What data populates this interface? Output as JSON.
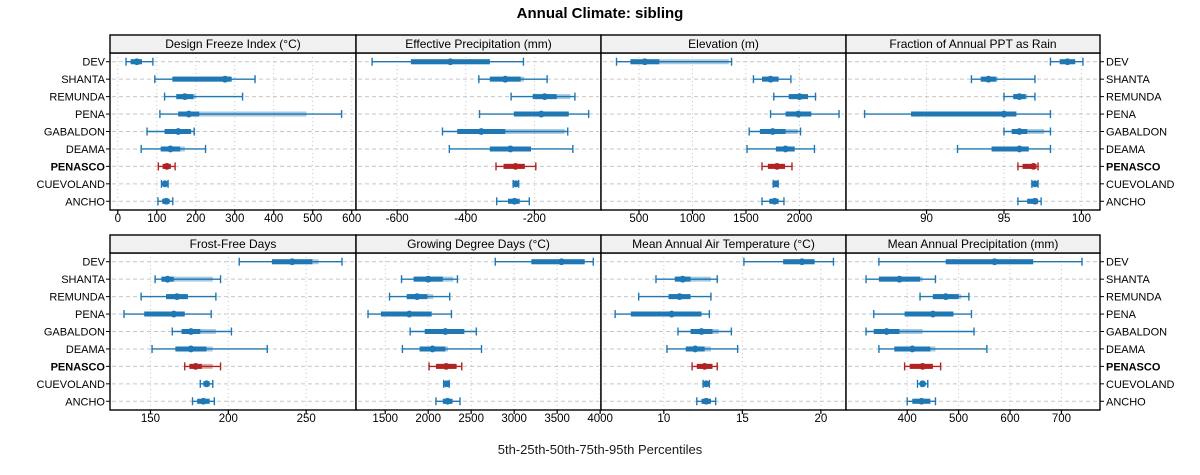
{
  "title": "Annual Climate: sibling",
  "caption": "5th-25th-50th-75th-95th Percentiles",
  "colors": {
    "series": "#1f77b4",
    "highlight": "#b22222",
    "strip_bg": "#f0f0f0",
    "grid": "#c6c6c6",
    "border": "#000000"
  },
  "sites": [
    "DEV",
    "SHANTA",
    "REMUNDA",
    "PENA",
    "GABALDON",
    "DEAMA",
    "PENASCO",
    "CUEVOLAND",
    "ANCHO"
  ],
  "highlight_site": "PENASCO",
  "percentiles": [
    5,
    25,
    50,
    75,
    95
  ],
  "chart_data": [
    {
      "type": "dotplot-percentiles",
      "id": "design-freeze-index",
      "title": "Design Freeze Index (°C)",
      "grid_position": {
        "row": 0,
        "col": 0
      },
      "xlim": [
        -20,
        611
      ],
      "ticks": [
        0,
        100,
        200,
        300,
        400,
        500,
        600
      ],
      "values": {
        "DEV": [
          21,
          33,
          49,
          62,
          90
        ],
        "SHANTA": [
          95,
          140,
          275,
          292,
          352
        ],
        "REMUNDA": [
          120,
          150,
          172,
          200,
          320
        ],
        "PENA": [
          108,
          155,
          182,
          484,
          574
        ],
        "GABALDON": [
          75,
          120,
          155,
          188,
          196
        ],
        "DEAMA": [
          60,
          110,
          135,
          172,
          225
        ],
        "PENASCO": [
          104,
          115,
          126,
          136,
          147
        ],
        "CUEVOLAND": [
          112,
          117,
          121,
          125,
          129
        ],
        "ANCHO": [
          103,
          114,
          124,
          133,
          141
        ]
      }
    },
    {
      "type": "dotplot-percentiles",
      "id": "effective-precipitation",
      "title": "Effective Precipitation (mm)",
      "grid_position": {
        "row": 0,
        "col": 1
      },
      "xlim": [
        -720,
        -6
      ],
      "ticks": [
        -600,
        -400,
        -200
      ],
      "values": {
        "DEV": [
          -673,
          -560,
          -445,
          -330,
          -232
        ],
        "SHANTA": [
          -362,
          -330,
          -285,
          -230,
          -163
        ],
        "REMUNDA": [
          -268,
          -205,
          -170,
          -95,
          -82
        ],
        "PENA": [
          -360,
          -260,
          -180,
          -100,
          -42
        ],
        "GABALDON": [
          -468,
          -425,
          -355,
          -112,
          -103
        ],
        "DEAMA": [
          -448,
          -330,
          -270,
          -210,
          -88
        ],
        "PENASCO": [
          -312,
          -290,
          -255,
          -228,
          -196
        ],
        "CUEVOLAND": [
          -262,
          -258,
          -254,
          -250,
          -246
        ],
        "ANCHO": [
          -310,
          -277,
          -258,
          -243,
          -215
        ]
      }
    },
    {
      "type": "dotplot-percentiles",
      "id": "elevation",
      "title": "Elevation (m)",
      "grid_position": {
        "row": 0,
        "col": 2
      },
      "xlim": [
        145,
        2435
      ],
      "ticks": [
        500,
        1000,
        1500,
        2000
      ],
      "values": {
        "DEV": [
          290,
          420,
          555,
          1340,
          1365
        ],
        "SHANTA": [
          1570,
          1650,
          1730,
          1805,
          1920
        ],
        "REMUNDA": [
          1760,
          1900,
          2000,
          2080,
          2150
        ],
        "PENA": [
          1730,
          1870,
          1990,
          2110,
          2370
        ],
        "GABALDON": [
          1530,
          1630,
          1750,
          1985,
          2010
        ],
        "DEAMA": [
          1510,
          1780,
          1870,
          1955,
          2140
        ],
        "PENASCO": [
          1650,
          1705,
          1790,
          1865,
          1930
        ],
        "CUEVOLAND": [
          1755,
          1768,
          1778,
          1788,
          1800
        ],
        "ANCHO": [
          1650,
          1718,
          1768,
          1805,
          1855
        ]
      }
    },
    {
      "type": "dotplot-percentiles",
      "id": "fraction-ppt-rain",
      "title": "Fraction of Annual PPT as Rain",
      "grid_position": {
        "row": 0,
        "col": 3
      },
      "xlim": [
        84.8,
        101.2
      ],
      "ticks": [
        90,
        95,
        100
      ],
      "values": {
        "DEV": [
          98.0,
          98.6,
          99.1,
          99.6,
          100.1
        ],
        "SHANTA": [
          92.9,
          93.5,
          94.0,
          94.6,
          97.0
        ],
        "REMUNDA": [
          95.0,
          95.6,
          96.0,
          96.5,
          97.0
        ],
        "PENA": [
          86.0,
          89.0,
          95.0,
          95.8,
          98.0
        ],
        "GABALDON": [
          95.0,
          95.5,
          96.0,
          97.6,
          98.0
        ],
        "DEAMA": [
          92.0,
          94.2,
          96.0,
          96.6,
          98.0
        ],
        "PENASCO": [
          95.9,
          96.2,
          96.9,
          97.1,
          97.2
        ],
        "CUEVOLAND": [
          96.8,
          96.9,
          97.0,
          97.1,
          97.2
        ],
        "ANCHO": [
          95.9,
          96.5,
          97.0,
          97.2,
          97.4
        ]
      }
    },
    {
      "type": "dotplot-percentiles",
      "id": "frost-free-days",
      "title": "Frost-Free Days",
      "grid_position": {
        "row": 1,
        "col": 0
      },
      "xlim": [
        124,
        282
      ],
      "ticks": [
        150,
        200,
        250
      ],
      "values": {
        "DEV": [
          207,
          228,
          241,
          258,
          273
        ],
        "SHANTA": [
          153,
          157,
          161,
          190,
          195
        ],
        "REMUNDA": [
          144,
          160,
          167,
          174,
          192
        ],
        "PENA": [
          133,
          146,
          165,
          172,
          189
        ],
        "GABALDON": [
          164,
          170,
          176,
          192,
          202
        ],
        "DEAMA": [
          151,
          166,
          176,
          190,
          225
        ],
        "PENASCO": [
          172,
          175,
          179,
          190,
          195
        ],
        "CUEVOLAND": [
          182,
          184,
          186,
          188,
          190
        ],
        "ANCHO": [
          177,
          180,
          184,
          188,
          191
        ]
      }
    },
    {
      "type": "dotplot-percentiles",
      "id": "growing-degree-days",
      "title": "Growing Degree Days (°C)",
      "grid_position": {
        "row": 1,
        "col": 1
      },
      "xlim": [
        1160,
        4010
      ],
      "ticks": [
        1500,
        2000,
        2500,
        3000,
        3500,
        4000
      ],
      "values": {
        "DEV": [
          2780,
          3200,
          3550,
          3820,
          3920
        ],
        "SHANTA": [
          1690,
          1830,
          2000,
          2290,
          2340
        ],
        "REMUNDA": [
          1550,
          1750,
          1870,
          2060,
          2250
        ],
        "PENA": [
          1300,
          1450,
          1780,
          2040,
          2270
        ],
        "GABALDON": [
          1790,
          1960,
          2200,
          2420,
          2560
        ],
        "DEAMA": [
          1700,
          1900,
          2050,
          2230,
          2620
        ],
        "PENASCO": [
          2010,
          2090,
          2210,
          2330,
          2390
        ],
        "CUEVOLAND": [
          2180,
          2200,
          2215,
          2230,
          2245
        ],
        "ANCHO": [
          2090,
          2170,
          2225,
          2290,
          2370
        ]
      }
    },
    {
      "type": "dotplot-percentiles",
      "id": "mean-annual-air-temperature",
      "title": "Mean Annual Air Temperature (°C)",
      "grid_position": {
        "row": 1,
        "col": 2
      },
      "xlim": [
        6.0,
        21.6
      ],
      "ticks": [
        10,
        15,
        20
      ],
      "values": {
        "DEV": [
          15.1,
          17.6,
          18.8,
          19.6,
          20.8
        ],
        "SHANTA": [
          9.5,
          10.7,
          11.2,
          13.0,
          13.4
        ],
        "REMUNDA": [
          8.4,
          10.3,
          11.0,
          11.7,
          13.0
        ],
        "PENA": [
          6.9,
          7.9,
          10.5,
          12.4,
          12.9
        ],
        "GABALDON": [
          10.9,
          11.7,
          12.4,
          13.5,
          14.3
        ],
        "DEAMA": [
          10.2,
          11.4,
          12.0,
          13.0,
          14.7
        ],
        "PENASCO": [
          11.8,
          12.1,
          12.6,
          13.1,
          13.4
        ],
        "CUEVOLAND": [
          12.5,
          12.6,
          12.7,
          12.8,
          12.9
        ],
        "ANCHO": [
          12.1,
          12.4,
          12.7,
          13.0,
          13.3
        ]
      }
    },
    {
      "type": "dotplot-percentiles",
      "id": "mean-annual-precipitation",
      "title": "Mean Annual Precipitation (mm)",
      "grid_position": {
        "row": 1,
        "col": 3
      },
      "xlim": [
        281,
        775
      ],
      "ticks": [
        400,
        500,
        600,
        700
      ],
      "values": {
        "DEV": [
          345,
          475,
          570,
          645,
          740
        ],
        "SHANTA": [
          320,
          345,
          385,
          430,
          455
        ],
        "REMUNDA": [
          425,
          450,
          475,
          505,
          520
        ],
        "PENA": [
          335,
          395,
          450,
          490,
          525
        ],
        "GABALDON": [
          320,
          335,
          360,
          430,
          530
        ],
        "DEAMA": [
          345,
          375,
          410,
          455,
          555
        ],
        "PENASCO": [
          395,
          405,
          430,
          450,
          465
        ],
        "CUEVOLAND": [
          420,
          425,
          430,
          435,
          440
        ],
        "ANCHO": [
          400,
          410,
          428,
          445,
          455
        ]
      }
    }
  ]
}
